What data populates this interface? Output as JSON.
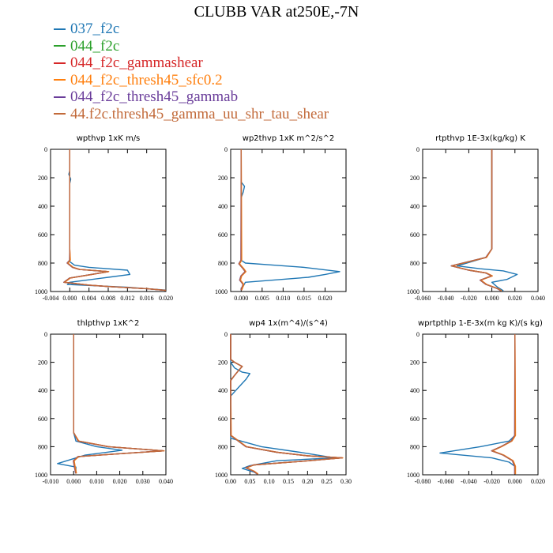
{
  "title": "CLUBB VAR at250E,-7N",
  "series": [
    {
      "name": "037_f2c",
      "color": "#1f77b4"
    },
    {
      "name": "044_f2c",
      "color": "#2ca02c"
    },
    {
      "name": "044_f2c_gammashear",
      "color": "#d62728"
    },
    {
      "name": "044_f2c_thresh45_sfc0.2",
      "color": "#ff7f0e"
    },
    {
      "name": "044_f2c_thresh45_gammab",
      "color": "#6a3d9a"
    },
    {
      "name": "44.f2c.thresh45_gamma_uu_shr_tau_shear",
      "color": "#c26a3a"
    }
  ],
  "chart_data": [
    {
      "type": "line",
      "title": "wpthvp  1xK m/s",
      "xlim": [
        -0.004,
        0.02
      ],
      "ylim": [
        0,
        1000
      ],
      "y_inverted": true,
      "xticks": [
        "-0.004",
        "0.000",
        "0.004",
        "0.008",
        "0.012",
        "0.016",
        "0.020"
      ],
      "yticks": [
        "0",
        "200",
        "400",
        "600",
        "800",
        "1000"
      ],
      "profiles": {
        "base": [
          [
            0.0,
            0
          ],
          [
            0.0,
            700
          ],
          [
            0.0,
            780
          ],
          [
            -0.0005,
            800
          ],
          [
            0.0006,
            830
          ],
          [
            0.002,
            845
          ],
          [
            0.008,
            860
          ],
          [
            0.0045,
            880
          ],
          [
            0.0,
            905
          ],
          [
            -0.0012,
            935
          ],
          [
            0.004,
            955
          ],
          [
            0.008,
            965
          ],
          [
            0.016,
            980
          ],
          [
            0.02,
            992
          ]
        ],
        "blue": [
          [
            0.0,
            0
          ],
          [
            0.0,
            150
          ],
          [
            -0.0002,
            175
          ],
          [
            0.0002,
            210
          ],
          [
            0.0,
            240
          ],
          [
            0.0,
            700
          ],
          [
            0.0,
            790
          ],
          [
            0.001,
            815
          ],
          [
            0.004,
            830
          ],
          [
            0.012,
            850
          ],
          [
            0.0125,
            880
          ],
          [
            0.008,
            900
          ],
          [
            0.0,
            935
          ],
          [
            -0.0005,
            950
          ],
          [
            0.012,
            970
          ],
          [
            0.02,
            990
          ]
        ]
      }
    },
    {
      "type": "line",
      "title": "wp2thvp  1xK m^2/s^2",
      "xlim": [
        -0.0025,
        0.025
      ],
      "ylim": [
        0,
        1000
      ],
      "y_inverted": true,
      "xticks": [
        "0.000",
        "0.005",
        "0.010",
        "0.015",
        "0.020"
      ],
      "yticks": [
        "0",
        "200",
        "400",
        "600",
        "800",
        "1000"
      ],
      "profiles": {
        "base": [
          [
            0.0,
            0
          ],
          [
            0.0,
            780
          ],
          [
            -0.0005,
            805
          ],
          [
            0.0005,
            840
          ],
          [
            0.001,
            860
          ],
          [
            0.0,
            890
          ],
          [
            -0.0003,
            920
          ],
          [
            0.0005,
            950
          ],
          [
            0.0,
            990
          ]
        ],
        "blue": [
          [
            0.0,
            0
          ],
          [
            0.0,
            230
          ],
          [
            0.0008,
            260
          ],
          [
            0.0005,
            300
          ],
          [
            0.0,
            340
          ],
          [
            0.0,
            780
          ],
          [
            0.001,
            800
          ],
          [
            0.008,
            815
          ],
          [
            0.015,
            830
          ],
          [
            0.0235,
            860
          ],
          [
            0.02,
            880
          ],
          [
            0.016,
            900
          ],
          [
            0.001,
            935
          ],
          [
            0.0,
            990
          ]
        ]
      }
    },
    {
      "type": "line",
      "title": "rtpthvp  1E-3x(kg/kg) K",
      "xlim": [
        -0.06,
        0.04
      ],
      "ylim": [
        0,
        1000
      ],
      "y_inverted": true,
      "xticks": [
        "-0.060",
        "-0.040",
        "-0.020",
        "0.000",
        "0.020",
        "0.040"
      ],
      "yticks": [
        "0",
        "200",
        "400",
        "600",
        "800",
        "1000"
      ],
      "profiles": {
        "base": [
          [
            0.0,
            0
          ],
          [
            0.0,
            700
          ],
          [
            -0.005,
            760
          ],
          [
            -0.035,
            820
          ],
          [
            -0.02,
            850
          ],
          [
            -0.005,
            870
          ],
          [
            0.0,
            890
          ],
          [
            -0.01,
            920
          ],
          [
            -0.005,
            950
          ],
          [
            0.005,
            980
          ],
          [
            0.008,
            995
          ]
        ],
        "blue": [
          [
            0.0,
            0
          ],
          [
            0.0,
            700
          ],
          [
            -0.005,
            760
          ],
          [
            -0.03,
            820
          ],
          [
            -0.01,
            840
          ],
          [
            0.01,
            855
          ],
          [
            0.022,
            880
          ],
          [
            0.013,
            915
          ],
          [
            0.0,
            935
          ],
          [
            0.005,
            970
          ],
          [
            0.01,
            995
          ]
        ]
      }
    },
    {
      "type": "line",
      "title": "thlpthvp  1xK^2",
      "xlim": [
        -0.01,
        0.04
      ],
      "ylim": [
        0,
        1000
      ],
      "y_inverted": true,
      "xticks": [
        "-0.010",
        "0.000",
        "0.010",
        "0.020",
        "0.030",
        "0.040"
      ],
      "yticks": [
        "0",
        "200",
        "400",
        "600",
        "800",
        "1000"
      ],
      "profiles": {
        "base": [
          [
            0.0,
            0
          ],
          [
            0.0,
            700
          ],
          [
            0.002,
            760
          ],
          [
            0.015,
            800
          ],
          [
            0.039,
            830
          ],
          [
            0.02,
            850
          ],
          [
            0.002,
            870
          ],
          [
            0.0,
            900
          ],
          [
            0.0005,
            950
          ],
          [
            0.001,
            990
          ]
        ],
        "blue": [
          [
            0.0,
            0
          ],
          [
            0.0,
            700
          ],
          [
            0.001,
            760
          ],
          [
            0.01,
            800
          ],
          [
            0.021,
            825
          ],
          [
            0.005,
            860
          ],
          [
            -0.001,
            890
          ],
          [
            -0.007,
            920
          ],
          [
            0.001,
            945
          ],
          [
            0.001,
            990
          ]
        ]
      }
    },
    {
      "type": "line",
      "title": "wp4  1x(m^4)/(s^4)",
      "xlim": [
        0,
        0.3
      ],
      "ylim": [
        0,
        1000
      ],
      "y_inverted": true,
      "xticks": [
        "0.00",
        "0.05",
        "0.10",
        "0.15",
        "0.20",
        "0.25",
        "0.30"
      ],
      "yticks": [
        "0",
        "200",
        "400",
        "600",
        "800",
        "1000"
      ],
      "profiles": {
        "base": [
          [
            0.0,
            0
          ],
          [
            0.0,
            180
          ],
          [
            0.01,
            200
          ],
          [
            0.03,
            230
          ],
          [
            0.02,
            260
          ],
          [
            0.008,
            300
          ],
          [
            0.0,
            330
          ],
          [
            0.0,
            720
          ],
          [
            0.04,
            800
          ],
          [
            0.12,
            840
          ],
          [
            0.2,
            865
          ],
          [
            0.29,
            880
          ],
          [
            0.18,
            905
          ],
          [
            0.06,
            930
          ],
          [
            0.04,
            950
          ],
          [
            0.06,
            975
          ],
          [
            0.07,
            995
          ]
        ],
        "blue": [
          [
            0.0,
            0
          ],
          [
            0.0,
            200
          ],
          [
            0.01,
            240
          ],
          [
            0.03,
            270
          ],
          [
            0.05,
            280
          ],
          [
            0.04,
            320
          ],
          [
            0.02,
            380
          ],
          [
            0.0,
            440
          ],
          [
            0.0,
            500
          ],
          [
            0.0,
            740
          ],
          [
            0.08,
            800
          ],
          [
            0.18,
            840
          ],
          [
            0.27,
            880
          ],
          [
            0.12,
            900
          ],
          [
            0.05,
            935
          ],
          [
            0.03,
            955
          ],
          [
            0.06,
            980
          ],
          [
            0.07,
            995
          ]
        ]
      }
    },
    {
      "type": "line",
      "title": "wprtpthlp  1-E-3x(m kg K)/(s kg)",
      "xlim": [
        -0.08,
        0.02
      ],
      "ylim": [
        0,
        1000
      ],
      "y_inverted": true,
      "xticks": [
        "-0.080",
        "-0.060",
        "-0.040",
        "-0.020",
        "0.000",
        "0.020"
      ],
      "yticks": [
        "0",
        "200",
        "400",
        "600",
        "800",
        "1000"
      ],
      "profiles": {
        "base": [
          [
            0.0,
            0
          ],
          [
            0.0,
            720
          ],
          [
            -0.003,
            760
          ],
          [
            -0.012,
            800
          ],
          [
            -0.02,
            830
          ],
          [
            -0.01,
            860
          ],
          [
            -0.002,
            900
          ],
          [
            0.0,
            940
          ],
          [
            0.0,
            995
          ]
        ],
        "blue": [
          [
            0.0,
            0
          ],
          [
            0.0,
            720
          ],
          [
            -0.005,
            760
          ],
          [
            -0.03,
            800
          ],
          [
            -0.065,
            845
          ],
          [
            -0.02,
            880
          ],
          [
            -0.005,
            910
          ],
          [
            0.0,
            940
          ],
          [
            0.0,
            995
          ]
        ]
      }
    }
  ]
}
